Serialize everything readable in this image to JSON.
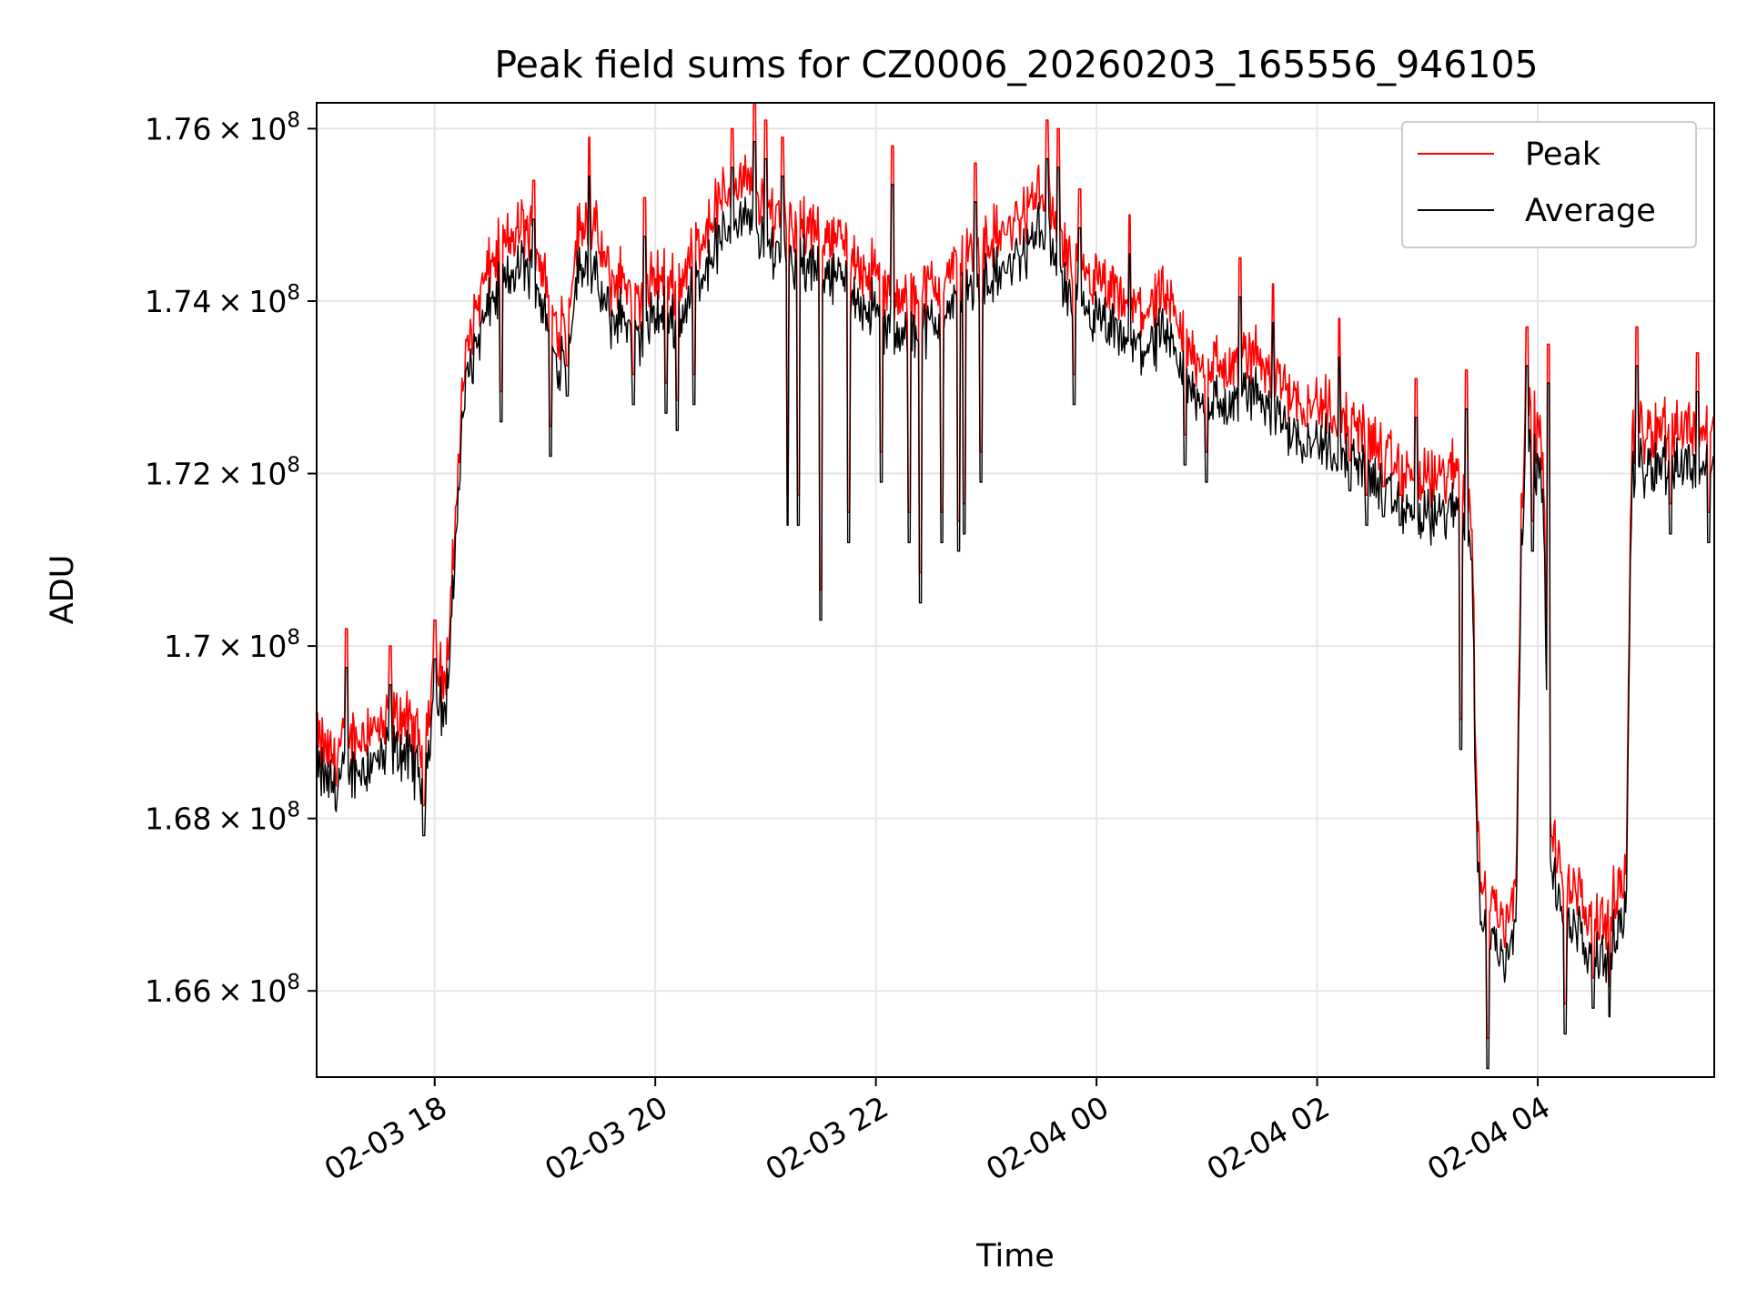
{
  "chart_data": {
    "type": "line",
    "title": "Peak field sums for CZ0006_20260203_165556_946105",
    "xlabel": "Time",
    "ylabel": "ADU",
    "xlim_hours": [
      16.93,
      29.6
    ],
    "ylim": [
      165000000,
      176300000
    ],
    "grid": true,
    "legend_position": "top-right",
    "x_ticks": [
      {
        "label": "02-03 18",
        "hour": 18
      },
      {
        "label": "02-03 20",
        "hour": 20
      },
      {
        "label": "02-03 22",
        "hour": 22
      },
      {
        "label": "02-04 00",
        "hour": 24
      },
      {
        "label": "02-04 02",
        "hour": 26
      },
      {
        "label": "02-04 04",
        "hour": 28
      }
    ],
    "y_ticks": [
      {
        "mantissa": "1.66",
        "exponent": "8",
        "value": 166000000
      },
      {
        "mantissa": "1.68",
        "exponent": "8",
        "value": 168000000
      },
      {
        "mantissa": "1.7",
        "exponent": "8",
        "value": 170000000
      },
      {
        "mantissa": "1.72",
        "exponent": "8",
        "value": 172000000
      },
      {
        "mantissa": "1.74",
        "exponent": "8",
        "value": 174000000
      },
      {
        "mantissa": "1.76",
        "exponent": "8",
        "value": 176000000
      }
    ],
    "series": [
      {
        "name": "Peak",
        "color": "#ff0000",
        "points": [
          [
            16.93,
            168.9
          ],
          [
            17.1,
            168.7
          ],
          [
            17.2,
            169.0
          ],
          [
            17.3,
            168.9
          ],
          [
            17.4,
            169.1
          ],
          [
            17.5,
            169.0
          ],
          [
            17.6,
            169.1
          ],
          [
            17.7,
            169.2
          ],
          [
            17.8,
            169.0
          ],
          [
            17.9,
            168.9
          ],
          [
            18.0,
            169.8
          ],
          [
            18.1,
            169.6
          ],
          [
            18.15,
            170.5
          ],
          [
            18.2,
            171.8
          ],
          [
            18.25,
            172.9
          ],
          [
            18.3,
            173.5
          ],
          [
            18.4,
            174.0
          ],
          [
            18.5,
            174.4
          ],
          [
            18.6,
            174.6
          ],
          [
            18.7,
            174.7
          ],
          [
            18.8,
            174.9
          ],
          [
            18.9,
            174.7
          ],
          [
            19.0,
            174.3
          ],
          [
            19.1,
            173.7
          ],
          [
            19.2,
            173.9
          ],
          [
            19.3,
            174.8
          ],
          [
            19.4,
            175.0
          ],
          [
            19.5,
            174.6
          ],
          [
            19.6,
            174.2
          ],
          [
            19.7,
            174.3
          ],
          [
            19.8,
            174.0
          ],
          [
            19.9,
            174.0
          ],
          [
            20.0,
            174.3
          ],
          [
            20.2,
            174.2
          ],
          [
            20.4,
            174.7
          ],
          [
            20.6,
            175.2
          ],
          [
            20.8,
            175.4
          ],
          [
            21.0,
            175.1
          ],
          [
            21.2,
            175.0
          ],
          [
            21.4,
            174.8
          ],
          [
            21.6,
            174.8
          ],
          [
            21.8,
            174.5
          ],
          [
            22.0,
            174.3
          ],
          [
            22.2,
            174.0
          ],
          [
            22.4,
            174.1
          ],
          [
            22.6,
            174.2
          ],
          [
            22.8,
            174.5
          ],
          [
            23.0,
            174.7
          ],
          [
            23.2,
            174.8
          ],
          [
            23.4,
            175.1
          ],
          [
            23.5,
            175.3
          ],
          [
            23.6,
            175.0
          ],
          [
            23.7,
            174.6
          ],
          [
            23.8,
            174.4
          ],
          [
            24.0,
            174.2
          ],
          [
            24.2,
            174.0
          ],
          [
            24.4,
            173.9
          ],
          [
            24.6,
            174.0
          ],
          [
            24.8,
            173.6
          ],
          [
            24.9,
            173.3
          ],
          [
            25.0,
            173.3
          ],
          [
            25.2,
            173.2
          ],
          [
            25.4,
            173.4
          ],
          [
            25.6,
            173.2
          ],
          [
            25.8,
            172.9
          ],
          [
            26.0,
            172.8
          ],
          [
            26.2,
            172.7
          ],
          [
            26.4,
            172.6
          ],
          [
            26.6,
            172.2
          ],
          [
            26.8,
            172.0
          ],
          [
            27.0,
            171.9
          ],
          [
            27.2,
            172.0
          ],
          [
            27.3,
            172.1
          ],
          [
            27.4,
            171.7
          ],
          [
            27.45,
            168.0
          ],
          [
            27.5,
            167.2
          ],
          [
            27.6,
            167.0
          ],
          [
            27.7,
            166.8
          ],
          [
            27.8,
            167.2
          ],
          [
            27.85,
            171.6
          ],
          [
            27.9,
            172.8
          ],
          [
            28.0,
            172.5
          ],
          [
            28.05,
            172.3
          ],
          [
            28.1,
            168.0
          ],
          [
            28.2,
            167.4
          ],
          [
            28.4,
            167.0
          ],
          [
            28.6,
            166.8
          ],
          [
            28.8,
            167.3
          ],
          [
            28.85,
            172.3
          ],
          [
            28.9,
            172.6
          ],
          [
            29.0,
            172.5
          ],
          [
            29.2,
            172.6
          ],
          [
            29.4,
            172.5
          ],
          [
            29.6,
            172.5
          ]
        ]
      },
      {
        "name": "Average",
        "color": "#000000",
        "points": [
          [
            16.93,
            168.6
          ],
          [
            17.1,
            168.4
          ],
          [
            17.2,
            168.6
          ],
          [
            17.3,
            168.6
          ],
          [
            17.4,
            168.7
          ],
          [
            17.5,
            168.7
          ],
          [
            17.6,
            168.8
          ],
          [
            17.7,
            168.8
          ],
          [
            17.8,
            168.7
          ],
          [
            17.9,
            168.5
          ],
          [
            18.0,
            169.4
          ],
          [
            18.1,
            169.3
          ],
          [
            18.15,
            170.2
          ],
          [
            18.2,
            171.5
          ],
          [
            18.25,
            172.6
          ],
          [
            18.3,
            173.2
          ],
          [
            18.4,
            173.6
          ],
          [
            18.5,
            174.0
          ],
          [
            18.6,
            174.2
          ],
          [
            18.7,
            174.3
          ],
          [
            18.8,
            174.5
          ],
          [
            18.9,
            174.3
          ],
          [
            19.0,
            173.9
          ],
          [
            19.1,
            173.3
          ],
          [
            19.2,
            173.5
          ],
          [
            19.3,
            174.4
          ],
          [
            19.4,
            174.5
          ],
          [
            19.5,
            174.1
          ],
          [
            19.6,
            173.8
          ],
          [
            19.7,
            173.9
          ],
          [
            19.8,
            173.6
          ],
          [
            19.9,
            173.6
          ],
          [
            20.0,
            173.9
          ],
          [
            20.2,
            173.8
          ],
          [
            20.4,
            174.3
          ],
          [
            20.6,
            174.8
          ],
          [
            20.8,
            175.0
          ],
          [
            21.0,
            174.7
          ],
          [
            21.2,
            174.6
          ],
          [
            21.4,
            174.4
          ],
          [
            21.6,
            174.4
          ],
          [
            21.8,
            174.1
          ],
          [
            22.0,
            173.9
          ],
          [
            22.2,
            173.6
          ],
          [
            22.4,
            173.7
          ],
          [
            22.6,
            173.8
          ],
          [
            22.8,
            174.1
          ],
          [
            23.0,
            174.3
          ],
          [
            23.2,
            174.4
          ],
          [
            23.4,
            174.7
          ],
          [
            23.5,
            174.9
          ],
          [
            23.6,
            174.6
          ],
          [
            23.7,
            174.2
          ],
          [
            23.8,
            174.0
          ],
          [
            24.0,
            173.8
          ],
          [
            24.2,
            173.6
          ],
          [
            24.4,
            173.5
          ],
          [
            24.6,
            173.6
          ],
          [
            24.8,
            173.2
          ],
          [
            24.9,
            172.9
          ],
          [
            25.0,
            172.9
          ],
          [
            25.2,
            172.8
          ],
          [
            25.4,
            173.0
          ],
          [
            25.6,
            172.8
          ],
          [
            25.8,
            172.5
          ],
          [
            26.0,
            172.4
          ],
          [
            26.2,
            172.3
          ],
          [
            26.4,
            172.2
          ],
          [
            26.6,
            171.8
          ],
          [
            26.8,
            171.6
          ],
          [
            27.0,
            171.5
          ],
          [
            27.2,
            171.6
          ],
          [
            27.3,
            171.7
          ],
          [
            27.4,
            171.3
          ],
          [
            27.45,
            167.6
          ],
          [
            27.5,
            166.8
          ],
          [
            27.6,
            166.6
          ],
          [
            27.7,
            166.4
          ],
          [
            27.8,
            166.8
          ],
          [
            27.85,
            171.2
          ],
          [
            27.9,
            172.4
          ],
          [
            28.0,
            172.1
          ],
          [
            28.05,
            171.9
          ],
          [
            28.1,
            167.6
          ],
          [
            28.2,
            167.0
          ],
          [
            28.4,
            166.6
          ],
          [
            28.6,
            166.4
          ],
          [
            28.8,
            166.9
          ],
          [
            28.85,
            171.9
          ],
          [
            28.9,
            172.2
          ],
          [
            29.0,
            172.1
          ],
          [
            29.2,
            172.2
          ],
          [
            29.4,
            172.1
          ],
          [
            29.6,
            172.1
          ]
        ]
      }
    ],
    "dips": [
      [
        17.9,
        167.8
      ],
      [
        18.6,
        172.6
      ],
      [
        19.05,
        172.2
      ],
      [
        19.2,
        172.9
      ],
      [
        19.8,
        172.8
      ],
      [
        20.1,
        172.7
      ],
      [
        20.2,
        172.5
      ],
      [
        20.35,
        172.8
      ],
      [
        20.7,
        172.9
      ],
      [
        21.2,
        171.4
      ],
      [
        21.3,
        171.4
      ],
      [
        21.5,
        170.3
      ],
      [
        21.75,
        171.2
      ],
      [
        22.05,
        171.9
      ],
      [
        22.3,
        171.2
      ],
      [
        22.4,
        170.5
      ],
      [
        22.6,
        171.2
      ],
      [
        22.75,
        171.1
      ],
      [
        22.8,
        171.3
      ],
      [
        22.95,
        171.9
      ],
      [
        23.8,
        172.8
      ],
      [
        24.8,
        172.1
      ],
      [
        25.0,
        171.9
      ],
      [
        25.6,
        172.0
      ],
      [
        25.9,
        172.2
      ],
      [
        26.3,
        171.8
      ],
      [
        26.45,
        171.4
      ],
      [
        26.6,
        171.5
      ],
      [
        26.75,
        171.4
      ],
      [
        27.3,
        168.8
      ],
      [
        27.4,
        171.0
      ],
      [
        27.55,
        165.1
      ],
      [
        27.95,
        171.1
      ],
      [
        28.25,
        165.5
      ],
      [
        28.5,
        165.8
      ],
      [
        28.65,
        165.7
      ],
      [
        29.2,
        171.3
      ],
      [
        29.55,
        171.2
      ]
    ],
    "spikes": [
      [
        17.2,
        170.2
      ],
      [
        17.6,
        170.0
      ],
      [
        18.0,
        170.3
      ],
      [
        18.9,
        175.4
      ],
      [
        19.4,
        175.9
      ],
      [
        19.9,
        175.2
      ],
      [
        20.7,
        176.0
      ],
      [
        20.9,
        176.3
      ],
      [
        21.0,
        176.1
      ],
      [
        21.15,
        175.9
      ],
      [
        22.15,
        175.8
      ],
      [
        22.9,
        175.6
      ],
      [
        23.55,
        176.1
      ],
      [
        23.65,
        176.0
      ],
      [
        23.85,
        175.3
      ],
      [
        24.3,
        175.0
      ],
      [
        25.3,
        174.5
      ],
      [
        25.6,
        174.2
      ],
      [
        26.2,
        173.8
      ],
      [
        26.9,
        173.1
      ],
      [
        27.35,
        173.2
      ],
      [
        27.9,
        173.7
      ],
      [
        28.1,
        173.5
      ],
      [
        28.9,
        173.7
      ],
      [
        29.45,
        173.4
      ]
    ]
  }
}
